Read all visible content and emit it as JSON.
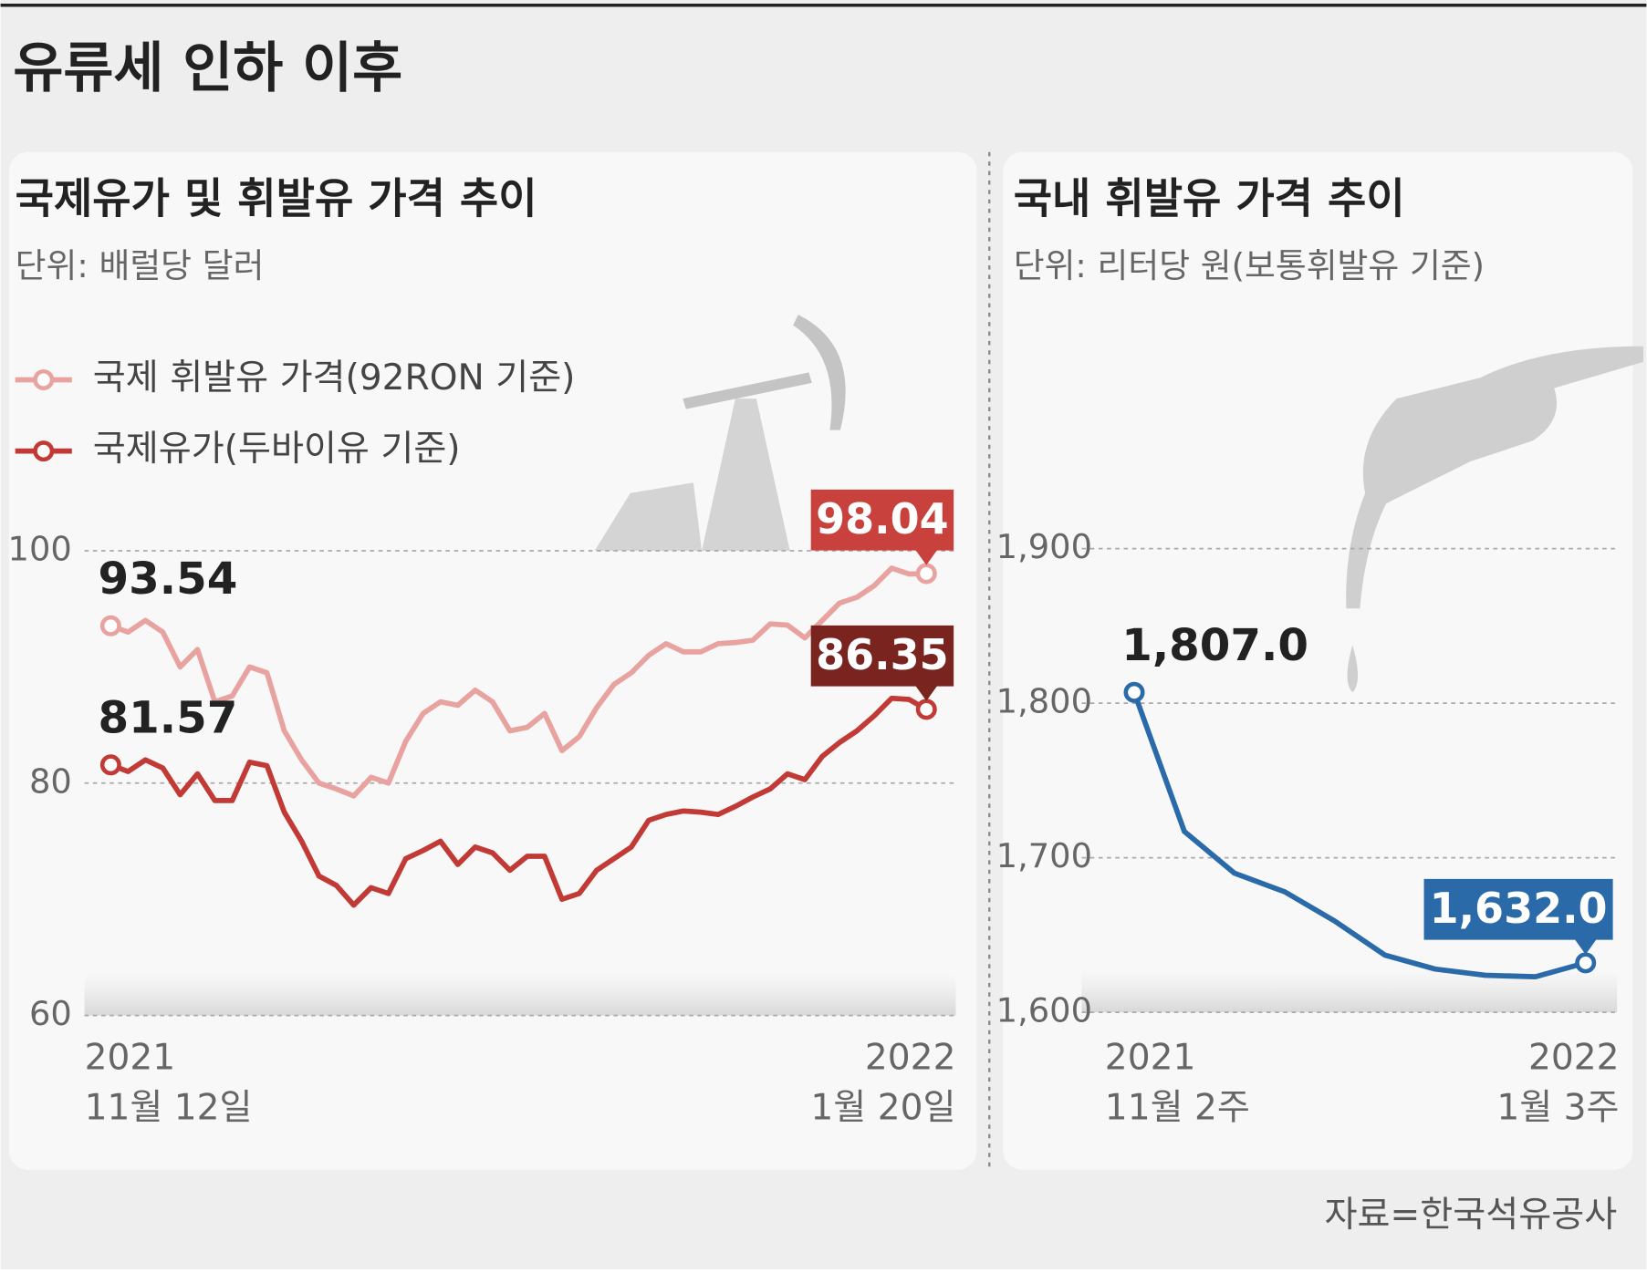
{
  "title": "유류세 인하 이후",
  "source": "자료=한국석유공사",
  "chart_data": [
    {
      "type": "line",
      "title": "국제유가 및 휘발유 가격 추이",
      "subtitle": "단위: 배럴당 달러",
      "categories": [
        [
          "2021",
          "11월 12일"
        ],
        null,
        null,
        null,
        null,
        null,
        null,
        null,
        null,
        null,
        null,
        null,
        null,
        null,
        null,
        null,
        null,
        null,
        null,
        null,
        null,
        null,
        null,
        null,
        null,
        null,
        null,
        null,
        null,
        null,
        null,
        null,
        null,
        null,
        null,
        null,
        null,
        null,
        null,
        null,
        null,
        null,
        null,
        null,
        null,
        null,
        null,
        [
          "2022",
          "1월 20일"
        ]
      ],
      "series": [
        {
          "name": "국제 휘발유 가격(92RON 기준)",
          "color": "#e8a3a0",
          "label_color": "#c8413d",
          "values": [
            93.54,
            93,
            94,
            93,
            90,
            91.5,
            87,
            87.5,
            90,
            89.5,
            84.5,
            82,
            80,
            79.5,
            78.9,
            80.5,
            80,
            83.6,
            86,
            87,
            86.7,
            88,
            87,
            84.5,
            84.8,
            86,
            82.8,
            84,
            86.5,
            88.5,
            89.5,
            91,
            92,
            91.3,
            91.3,
            92,
            92.1,
            92.3,
            93.7,
            93.6,
            92.5,
            94,
            95.5,
            96,
            97,
            98.5,
            98,
            98.04
          ]
        },
        {
          "name": "국제유가(두바이유 기준)",
          "color": "#c23a35",
          "label_color": "#7a2420",
          "values": [
            81.57,
            81,
            82,
            81.3,
            79,
            80.8,
            78.5,
            78.5,
            81.8,
            81.5,
            77.5,
            75,
            72,
            71.2,
            69.5,
            71,
            70.5,
            73.5,
            74.2,
            75,
            73,
            74.5,
            74,
            72.5,
            73.7,
            73.7,
            70,
            70.5,
            72.5,
            73.5,
            74.5,
            76.8,
            77.3,
            77.6,
            77.5,
            77.3,
            78,
            78.8,
            79.5,
            80.8,
            80.3,
            82.3,
            83.5,
            84.5,
            85.8,
            87.3,
            87.2,
            86.35
          ]
        }
      ],
      "ylim": [
        60,
        100
      ],
      "yticks": [
        60,
        80,
        100
      ],
      "grid": true
    },
    {
      "type": "line",
      "title": "국내 휘발유 가격 추이",
      "subtitle": "단위: 리터당 원(보통휘발유 기준)",
      "categories": [
        [
          "2021",
          "11월 2주"
        ],
        null,
        null,
        null,
        null,
        null,
        null,
        null,
        null,
        [
          "2022",
          "1월 3주"
        ]
      ],
      "series": [
        {
          "name": "보통휘발유",
          "color": "#2a6aa8",
          "label_color": "#2a6aa8",
          "values": [
            1807,
            1717,
            1690,
            1678,
            1659,
            1637,
            1628,
            1624,
            1623,
            1632
          ],
          "value_labels": [
            "1,807.0",
            null,
            null,
            null,
            null,
            null,
            null,
            null,
            null,
            "1,632.0"
          ]
        }
      ],
      "ylim": [
        1600,
        1900
      ],
      "yticks": [
        {
          "value": 1600,
          "label": "1,600"
        },
        {
          "value": 1700,
          "label": "1,700"
        },
        {
          "value": 1800,
          "label": "1,800"
        },
        {
          "value": 1900,
          "label": "1,900"
        }
      ],
      "grid": true
    }
  ]
}
